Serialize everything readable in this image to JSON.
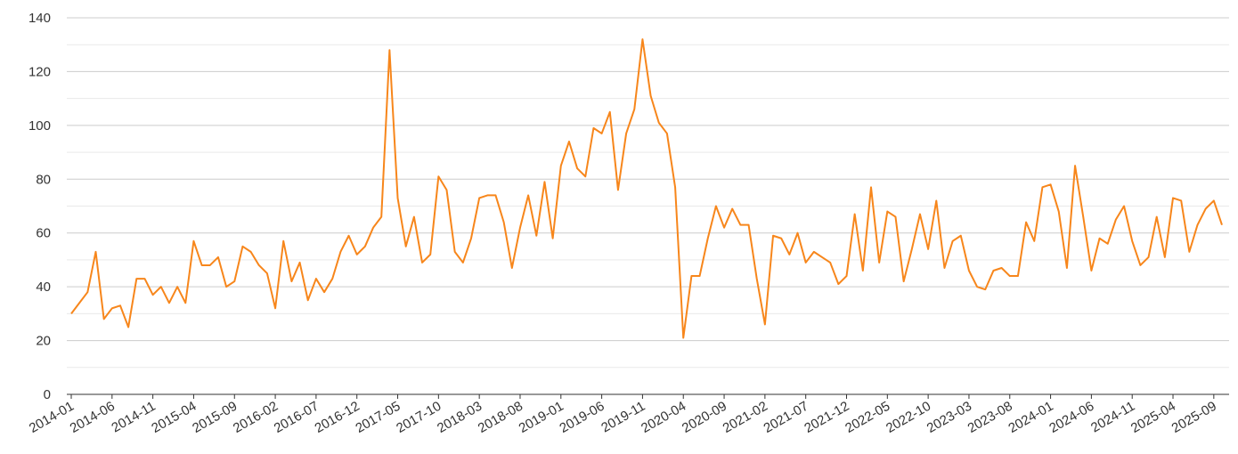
{
  "chart_data": {
    "type": "line",
    "ylim": [
      0,
      140
    ],
    "yticks": [
      0,
      20,
      40,
      60,
      80,
      100,
      120,
      140
    ],
    "minor_gridlines": true,
    "grid": true,
    "legend": "none",
    "line_color": "#f7861b",
    "grid_color": "#cccccc",
    "minor_grid_color": "#e9e9e9",
    "x_tick_labels": [
      "2014-01",
      "2014-06",
      "2014-11",
      "2015-04",
      "2015-09",
      "2016-02",
      "2016-07",
      "2016-12",
      "2017-05",
      "2017-10",
      "2018-03",
      "2018-08",
      "2019-01",
      "2019-06",
      "2019-11",
      "2020-04",
      "2020-09",
      "2021-02",
      "2021-07",
      "2021-12",
      "2022-05",
      "2022-10",
      "2023-03",
      "2023-08",
      "2024-01",
      "2024-06",
      "2024-11",
      "2025-04",
      "2025-09"
    ],
    "x_start": "2014-01",
    "values": [
      30,
      34,
      38,
      53,
      28,
      32,
      33,
      25,
      43,
      43,
      37,
      40,
      34,
      40,
      34,
      57,
      48,
      48,
      51,
      40,
      42,
      55,
      53,
      48,
      45,
      32,
      57,
      42,
      49,
      35,
      43,
      38,
      43,
      53,
      59,
      52,
      55,
      62,
      66,
      128,
      73,
      55,
      66,
      49,
      52,
      81,
      76,
      53,
      49,
      58,
      73,
      74,
      74,
      64,
      47,
      62,
      74,
      59,
      79,
      58,
      85,
      94,
      84,
      81,
      99,
      97,
      105,
      76,
      97,
      106,
      132,
      111,
      101,
      97,
      77,
      21,
      44,
      44,
      58,
      70,
      62,
      69,
      63,
      63,
      43,
      26,
      59,
      58,
      52,
      60,
      49,
      53,
      51,
      49,
      41,
      44,
      67,
      46,
      77,
      49,
      68,
      66,
      42,
      54,
      67,
      54,
      72,
      47,
      57,
      59,
      46,
      40,
      39,
      46,
      47,
      44,
      44,
      64,
      57,
      77,
      78,
      68,
      47,
      85,
      66,
      46,
      58,
      56,
      65,
      70,
      57,
      48,
      51,
      66,
      51,
      73,
      72,
      53,
      63,
      69,
      72,
      63
    ]
  }
}
